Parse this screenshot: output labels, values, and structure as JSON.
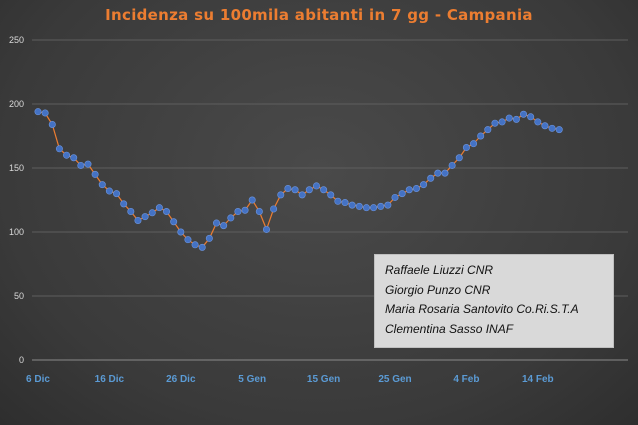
{
  "chart_data": {
    "type": "line",
    "title": "Incidenza su 100mila abitanti in 7 gg - Campania",
    "xlabel": "",
    "ylabel": "",
    "ylim": [
      0,
      250
    ],
    "y_ticks": [
      "0",
      "50",
      "100",
      "150",
      "200",
      "250"
    ],
    "y_tick_values": [
      0,
      50,
      100,
      150,
      200,
      250
    ],
    "x_tick_labels": [
      "6 Dic",
      "16 Dic",
      "26 Dic",
      "5 Gen",
      "15 Gen",
      "25 Gen",
      "4 Feb",
      "14 Feb"
    ],
    "x_tick_indices": [
      0,
      10,
      20,
      30,
      40,
      50,
      60,
      70
    ],
    "grid": true,
    "series": [
      {
        "color": "#ed7d31",
        "marker_color": "#4472c4",
        "values": [
          194,
          193,
          184,
          165,
          160,
          158,
          152,
          153,
          145,
          137,
          132,
          130,
          122,
          116,
          109,
          112,
          115,
          119,
          116,
          108,
          100,
          94,
          90,
          88,
          95,
          107,
          105,
          111,
          116,
          117,
          125,
          116,
          102,
          118,
          129,
          134,
          133,
          129,
          133,
          136,
          133,
          129,
          124,
          123,
          121,
          120,
          119,
          119,
          120,
          121,
          127,
          130,
          133,
          134,
          137,
          142,
          146,
          146,
          152,
          158,
          166,
          169,
          175,
          180,
          185,
          186,
          189,
          188,
          192,
          190,
          186,
          183,
          181,
          180
        ]
      }
    ]
  },
  "credits": [
    "Raffaele Liuzzi CNR",
    "Giorgio Punzo CNR",
    "Maria Rosaria Santovito Co.Ri.S.T.A",
    "Clementina Sasso INAF"
  ]
}
